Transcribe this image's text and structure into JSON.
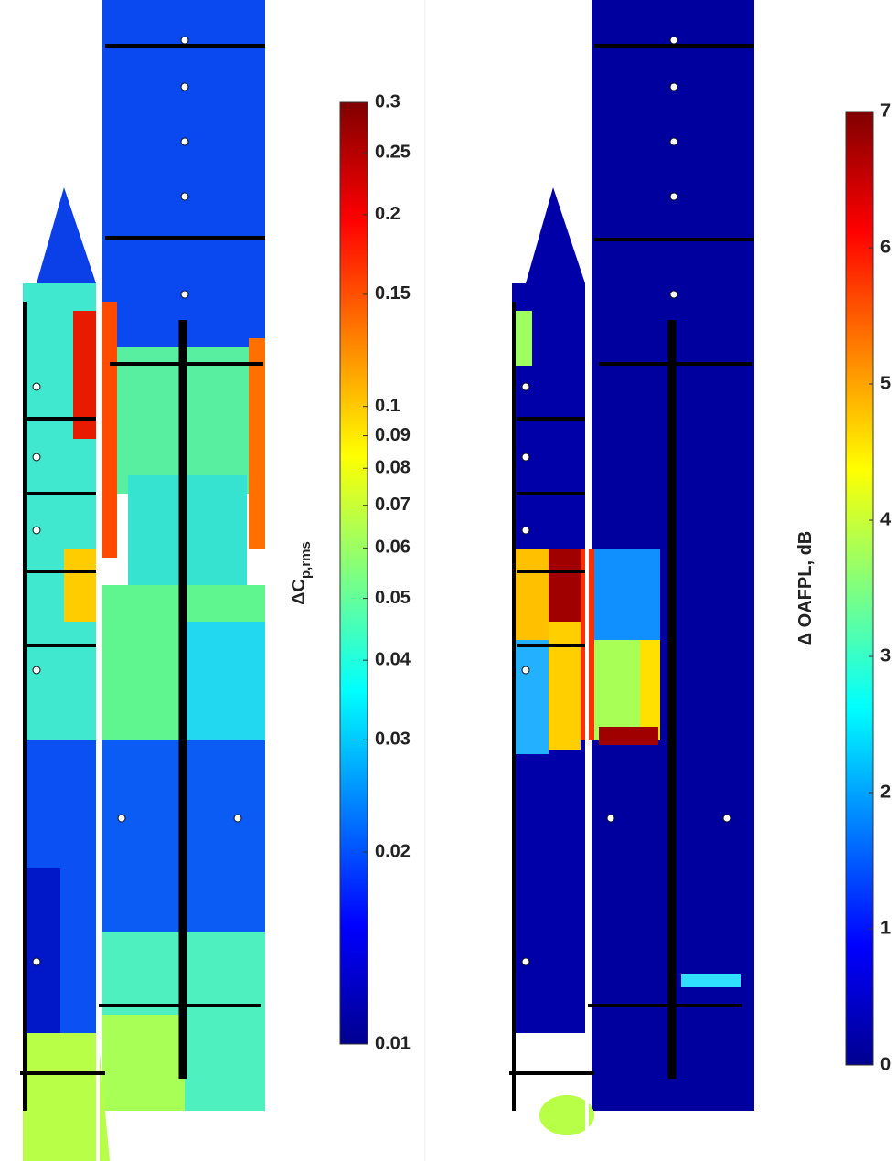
{
  "chart_data": [
    {
      "type": "colorbar",
      "colorbar": {
        "label": "ΔC",
        "label_subscript": "p,rms",
        "lim": [
          0.01,
          0.3
        ],
        "scale": "log",
        "colormap": "jet",
        "ticks": [
          0.01,
          0.02,
          0.03,
          0.04,
          0.05,
          0.06,
          0.07,
          0.08,
          0.09,
          0.1,
          0.15,
          0.2,
          0.25,
          0.3
        ]
      }
    },
    {
      "type": "colorbar",
      "colorbar": {
        "label": "Δ OAFPL, dB",
        "lim": [
          0,
          7
        ],
        "scale": "linear",
        "colormap": "jet",
        "ticks": [
          0,
          1,
          2,
          3,
          4,
          5,
          6,
          7
        ]
      }
    }
  ]
}
